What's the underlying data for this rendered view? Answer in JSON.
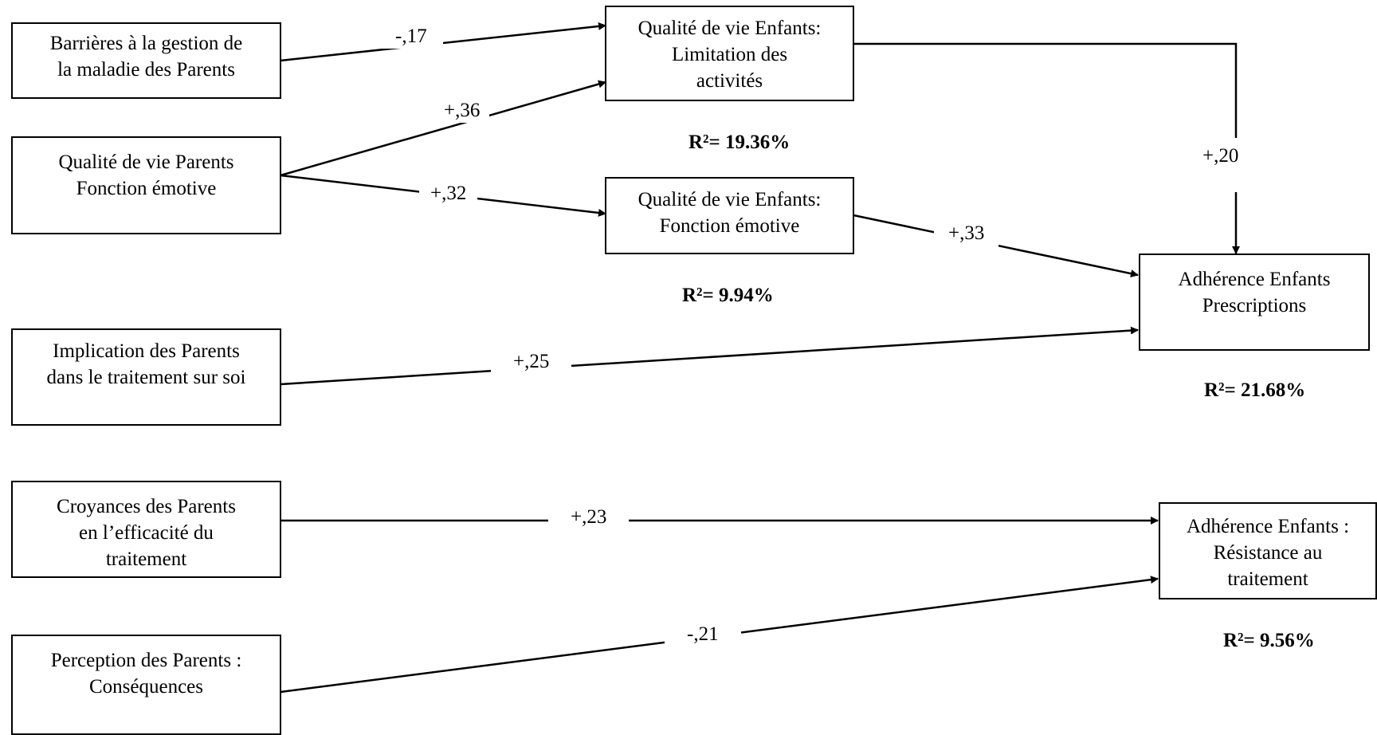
{
  "nodes": {
    "barrieres": [
      "Barrières à la gestion de",
      "la maladie des Parents"
    ],
    "qdv_parents": [
      "Qualité de vie Parents",
      "Fonction émotive"
    ],
    "implication": [
      "Implication des Parents",
      "dans le traitement sur soi"
    ],
    "croyances": [
      "Croyances des Parents",
      "en l’efficacité du",
      "traitement"
    ],
    "perception": [
      "Perception des Parents :",
      "Conséquences"
    ],
    "qdv_enf_limitation": [
      "Qualité de vie Enfants:",
      "Limitation des",
      "activités"
    ],
    "qdv_enf_emotive": [
      "Qualité de vie Enfants:",
      "Fonction émotive"
    ],
    "adh_prescriptions": [
      "Adhérence Enfants",
      "Prescriptions"
    ],
    "adh_resistance": [
      "Adhérence Enfants :",
      "Résistance au",
      "traitement"
    ]
  },
  "coefficients": {
    "barrieres_to_limitation": "-,17",
    "qdvp_to_limitation": "+,36",
    "qdvp_to_emotive": "+,32",
    "limitation_to_prescriptions": "+,20",
    "emotive_to_prescriptions": "+,33",
    "implication_to_prescriptions": "+,25",
    "croyances_to_resistance": "+,23",
    "perception_to_resistance": "-,21"
  },
  "r_squared": {
    "limitation": "R²= 19.36%",
    "emotive": "R²= 9.94%",
    "prescriptions": "R²= 21.68%",
    "resistance": "R²= 9.56%"
  }
}
